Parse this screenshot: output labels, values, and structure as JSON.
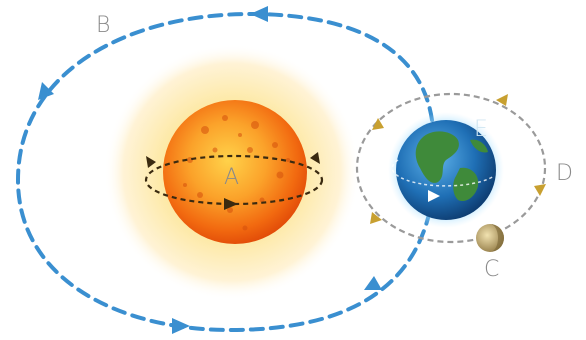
{
  "labels": {
    "a": "A",
    "b": "B",
    "c": "C",
    "d": "D",
    "e": "E"
  },
  "colors": {
    "outer_orbit": "#3a8fd0",
    "earth_orbit": "#9a9a9a",
    "sun_rotation": "#3a2a10",
    "moon_arrow": "#c8a030",
    "sun_core": "#f26a10",
    "sun_glow": "#fde9a6",
    "earth_ocean": "#1f6fb5",
    "earth_land": "#3f8a3a",
    "earth_halo": "#7fd0ff",
    "moon": "#c9b27a",
    "label_text": "#8a8a8a"
  }
}
